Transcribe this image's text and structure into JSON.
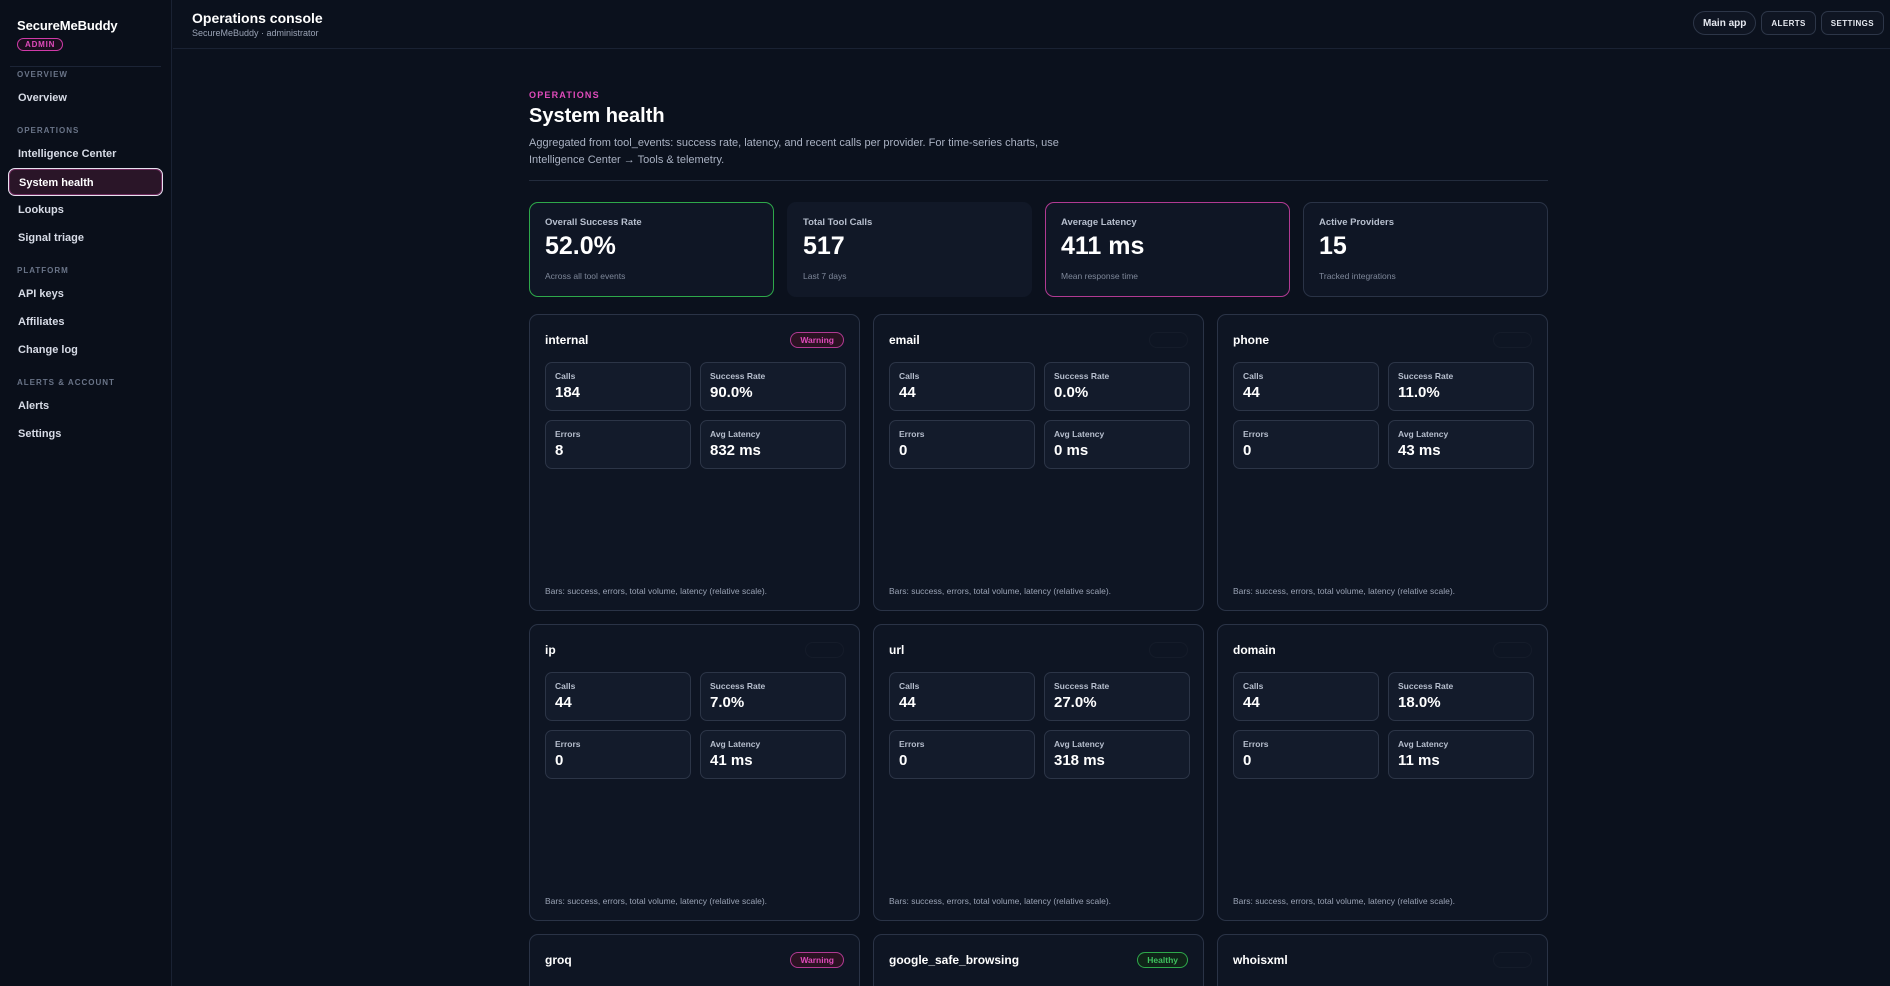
{
  "sidebar": {
    "brand": "SecureMeBuddy",
    "badge": "ADMIN",
    "sections": [
      {
        "title": "OVERVIEW",
        "items": [
          "Overview"
        ]
      },
      {
        "title": "OPERATIONS",
        "items": [
          "Intelligence Center",
          "System health",
          "Lookups",
          "Signal triage"
        ]
      },
      {
        "title": "PLATFORM",
        "items": [
          "API keys",
          "Affiliates",
          "Change log"
        ]
      },
      {
        "title": "ALERTS & ACCOUNT",
        "items": [
          "Alerts",
          "Settings"
        ]
      }
    ],
    "active": "System health"
  },
  "topbar": {
    "title": "Operations console",
    "subtitle": "SecureMeBuddy · administrator",
    "main_app": "Main app",
    "alerts": "ALERTS",
    "settings": "SETTINGS"
  },
  "page": {
    "eyebrow": "OPERATIONS",
    "title": "System health",
    "description": "Aggregated from tool_events: success rate, latency, and recent calls per provider. For time-series charts, use Intelligence Center → Tools & telemetry."
  },
  "kpis": [
    {
      "label": "Overall Success Rate",
      "value": "52.0%",
      "sub": "Across all tool events"
    },
    {
      "label": "Total Tool Calls",
      "value": "517",
      "sub": "Last 7 days"
    },
    {
      "label": "Average Latency",
      "value": "411 ms",
      "sub": "Mean response time"
    },
    {
      "label": "Active Providers",
      "value": "15",
      "sub": "Tracked integrations"
    }
  ],
  "metric_labels": {
    "calls": "Calls",
    "success": "Success Rate",
    "errors": "Errors",
    "latency": "Avg Latency"
  },
  "card_footer": "Bars: success, errors, total volume, latency (relative scale).",
  "providers": [
    {
      "name": "internal",
      "status": "Warning",
      "calls": "184",
      "success": "90.0%",
      "errors": "8",
      "latency": "832 ms"
    },
    {
      "name": "email",
      "status": "",
      "calls": "44",
      "success": "0.0%",
      "errors": "0",
      "latency": "0 ms"
    },
    {
      "name": "phone",
      "status": "",
      "calls": "44",
      "success": "11.0%",
      "errors": "0",
      "latency": "43 ms"
    },
    {
      "name": "ip",
      "status": "",
      "calls": "44",
      "success": "7.0%",
      "errors": "0",
      "latency": "41 ms"
    },
    {
      "name": "url",
      "status": "",
      "calls": "44",
      "success": "27.0%",
      "errors": "0",
      "latency": "318 ms"
    },
    {
      "name": "domain",
      "status": "",
      "calls": "44",
      "success": "18.0%",
      "errors": "0",
      "latency": "11 ms"
    },
    {
      "name": "groq",
      "status": "Warning"
    },
    {
      "name": "google_safe_browsing",
      "status": "Healthy"
    },
    {
      "name": "whoisxml",
      "status": ""
    }
  ]
}
